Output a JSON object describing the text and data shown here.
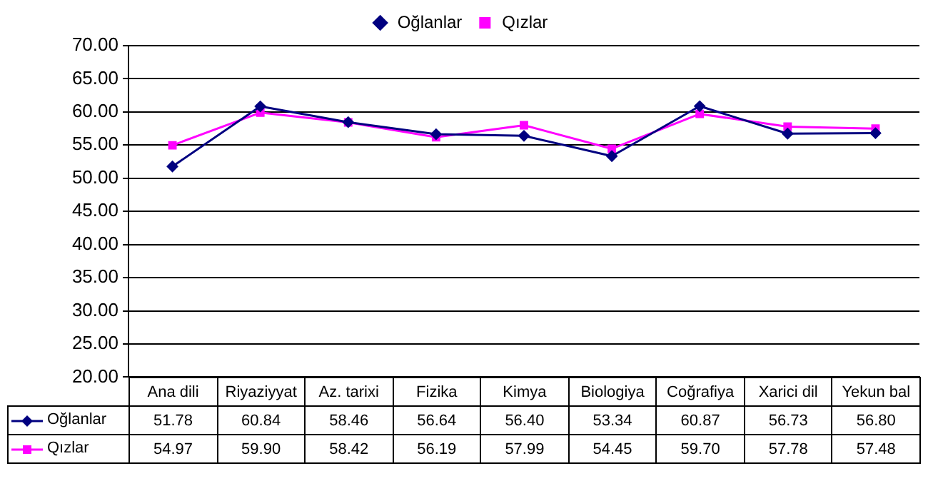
{
  "chart_data": {
    "type": "line",
    "categories": [
      "Ana dili",
      "Riyaziyyat",
      "Az. tarixi",
      "Fizika",
      "Kimya",
      "Biologiya",
      "Coğrafiya",
      "Xarici dil",
      "Yekun bal"
    ],
    "series": [
      {
        "name": "Oğlanlar",
        "color": "#000080",
        "marker": "diamond",
        "values": [
          51.78,
          60.84,
          58.46,
          56.64,
          56.4,
          53.34,
          60.87,
          56.73,
          56.8
        ],
        "value_labels": [
          "51.78",
          "60.84",
          "58.46",
          "56.64",
          "56.40",
          "53.34",
          "60.87",
          "56.73",
          "56.80"
        ]
      },
      {
        "name": "Qızlar",
        "color": "#ff00ff",
        "marker": "square",
        "values": [
          54.97,
          59.9,
          58.42,
          56.19,
          57.99,
          54.45,
          59.7,
          57.78,
          57.48
        ],
        "value_labels": [
          "54.97",
          "59.90",
          "58.42",
          "56.19",
          "57.99",
          "54.45",
          "59.70",
          "57.78",
          "57.48"
        ]
      }
    ],
    "ylim": [
      20,
      70
    ],
    "yticks": [
      {
        "value": 20,
        "label": "20.00"
      },
      {
        "value": 25,
        "label": "25.00"
      },
      {
        "value": 30,
        "label": "30.00"
      },
      {
        "value": 35,
        "label": "35.00"
      },
      {
        "value": 40,
        "label": "40.00"
      },
      {
        "value": 45,
        "label": "45.00"
      },
      {
        "value": 50,
        "label": "50.00"
      },
      {
        "value": 55,
        "label": "55.00"
      },
      {
        "value": 60,
        "label": "60.00"
      },
      {
        "value": 65,
        "label": "65.00"
      },
      {
        "value": 70,
        "label": "70.00"
      }
    ],
    "grid": "y",
    "legend": "top"
  }
}
